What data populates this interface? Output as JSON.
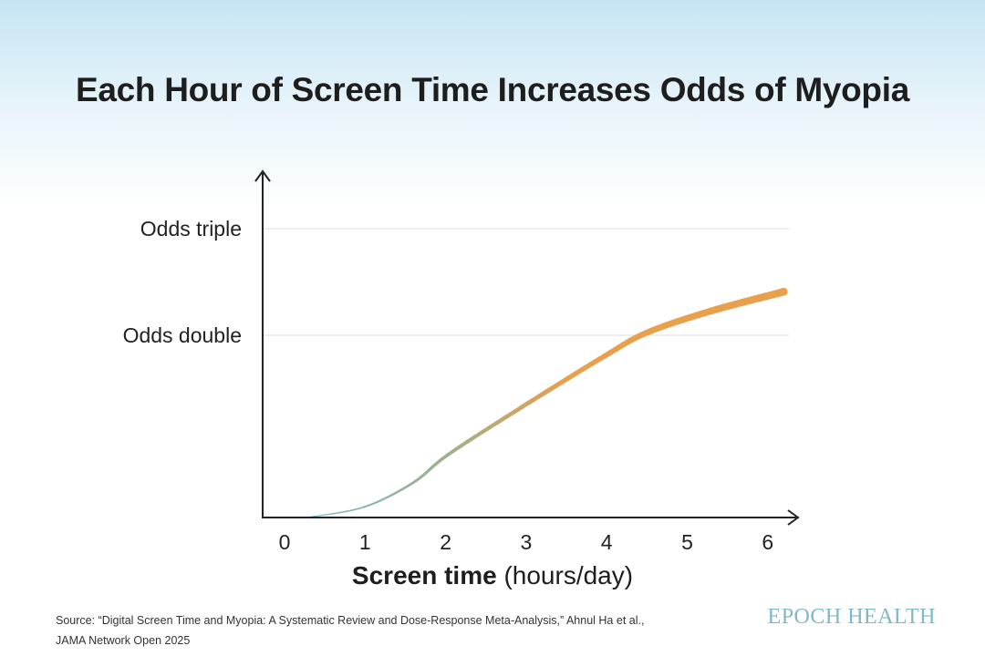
{
  "chart_data": {
    "type": "line",
    "title": "Each Hour of Screen Time Increases Odds of Myopia",
    "xlabel_bold": "Screen time",
    "xlabel_rest": " (hours/day)",
    "x_ticks": [
      "0",
      "1",
      "2",
      "3",
      "4",
      "5",
      "6"
    ],
    "xlim": [
      0,
      6.3
    ],
    "y_scale": "log",
    "ylim": [
      1,
      3.2
    ],
    "y_ticks": [
      {
        "value": 2,
        "label": "Odds double"
      },
      {
        "value": 3,
        "label": "Odds triple"
      }
    ],
    "grid": "horizontal at y ticks",
    "series": [
      {
        "x": [
          0.27,
          0.98,
          1.59,
          2.03,
          2.94,
          3.98,
          4.5,
          5.28,
          6.2
        ],
        "y": [
          1.0,
          1.04,
          1.14,
          1.27,
          1.52,
          1.85,
          2.02,
          2.19,
          2.36
        ],
        "color_start": "#7ab8c8",
        "color_end": "#e9a04c"
      }
    ]
  },
  "source": {
    "line1": "Source: “Digital Screen Time and Myopia: A Systematic Review and Dose-Response Meta-Analysis,” Ahnul Ha et al.,",
    "line2": "JAMA Network Open 2025"
  },
  "logo": "EPOCH HEALTH"
}
